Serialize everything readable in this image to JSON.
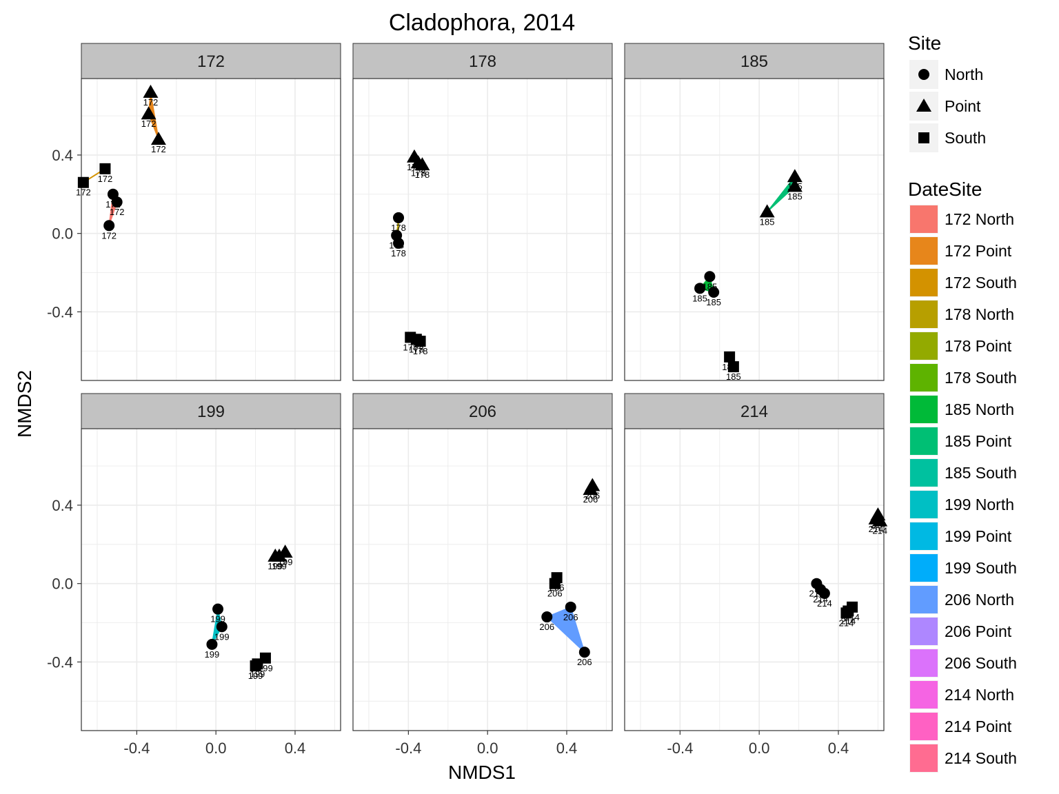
{
  "chart_data": {
    "type": "scatter",
    "title": "Cladophora, 2014",
    "xlabel": "NMDS1",
    "ylabel": "NMDS2",
    "xlim": [
      -0.68,
      0.63
    ],
    "ylim": [
      -0.75,
      0.79
    ],
    "x_ticks": [
      -0.4,
      0.0,
      0.4
    ],
    "y_ticks": [
      -0.4,
      0.0,
      0.4
    ],
    "x_tick_labels": [
      "-0.4",
      "0.0",
      "0.4"
    ],
    "y_tick_labels": [
      "-0.4",
      "0.0",
      "0.4"
    ],
    "grid": true,
    "legend_position": "right",
    "shape_legend": {
      "title": "Site",
      "entries": [
        {
          "label": "North",
          "shape": "circle"
        },
        {
          "label": "Point",
          "shape": "triangle"
        },
        {
          "label": "South",
          "shape": "square"
        }
      ]
    },
    "fill_legend": {
      "title": "DateSite",
      "entries": [
        {
          "label": "172 North",
          "color": "#F8766D"
        },
        {
          "label": "172 Point",
          "color": "#E7861B"
        },
        {
          "label": "172 South",
          "color": "#D39200"
        },
        {
          "label": "178 North",
          "color": "#B79F00"
        },
        {
          "label": "178 Point",
          "color": "#93AA00"
        },
        {
          "label": "178 South",
          "color": "#5EB300"
        },
        {
          "label": "185 North",
          "color": "#00BA38"
        },
        {
          "label": "185 Point",
          "color": "#00BF74"
        },
        {
          "label": "185 South",
          "color": "#00C19F"
        },
        {
          "label": "199 North",
          "color": "#00BFC4"
        },
        {
          "label": "199 Point",
          "color": "#00B9E3"
        },
        {
          "label": "199 South",
          "color": "#00ADFA"
        },
        {
          "label": "206 North",
          "color": "#619CFF"
        },
        {
          "label": "206 Point",
          "color": "#AE87FF"
        },
        {
          "label": "206 South",
          "color": "#DB72FB"
        },
        {
          "label": "214 North",
          "color": "#F564E3"
        },
        {
          "label": "214 Point",
          "color": "#FF61C3"
        },
        {
          "label": "214 South",
          "color": "#FF6C91"
        }
      ]
    },
    "panels": [
      {
        "label": "172",
        "groups": [
          {
            "name": "172 North",
            "site": "North",
            "points": [
              [
                -0.52,
                0.2
              ],
              [
                -0.5,
                0.16
              ],
              [
                -0.54,
                0.04
              ]
            ]
          },
          {
            "name": "172 Point",
            "site": "Point",
            "points": [
              [
                -0.33,
                0.72
              ],
              [
                -0.34,
                0.61
              ],
              [
                -0.29,
                0.48
              ]
            ]
          },
          {
            "name": "172 South",
            "site": "South",
            "points": [
              [
                -0.56,
                0.33
              ],
              [
                -0.67,
                0.26
              ]
            ]
          }
        ]
      },
      {
        "label": "178",
        "groups": [
          {
            "name": "178 North",
            "site": "North",
            "points": [
              [
                -0.45,
                0.08
              ],
              [
                -0.46,
                -0.01
              ],
              [
                -0.45,
                -0.05
              ]
            ]
          },
          {
            "name": "178 Point",
            "site": "Point",
            "points": [
              [
                -0.37,
                0.39
              ],
              [
                -0.35,
                0.36
              ],
              [
                -0.33,
                0.35
              ]
            ]
          },
          {
            "name": "178 South",
            "site": "South",
            "points": [
              [
                -0.39,
                -0.53
              ],
              [
                -0.36,
                -0.54
              ],
              [
                -0.34,
                -0.55
              ]
            ]
          }
        ]
      },
      {
        "label": "185",
        "groups": [
          {
            "name": "185 North",
            "site": "North",
            "points": [
              [
                -0.25,
                -0.22
              ],
              [
                -0.3,
                -0.28
              ],
              [
                -0.23,
                -0.3
              ]
            ]
          },
          {
            "name": "185 Point",
            "site": "Point",
            "points": [
              [
                0.18,
                0.29
              ],
              [
                0.04,
                0.11
              ],
              [
                0.18,
                0.24
              ]
            ]
          },
          {
            "name": "185 South",
            "site": "South",
            "points": [
              [
                -0.15,
                -0.63
              ],
              [
                -0.13,
                -0.68
              ]
            ]
          }
        ]
      },
      {
        "label": "199",
        "groups": [
          {
            "name": "199 North",
            "site": "North",
            "points": [
              [
                0.01,
                -0.13
              ],
              [
                0.03,
                -0.22
              ],
              [
                -0.02,
                -0.31
              ]
            ]
          },
          {
            "name": "199 Point",
            "site": "Point",
            "points": [
              [
                0.3,
                0.14
              ],
              [
                0.32,
                0.14
              ],
              [
                0.35,
                0.16
              ]
            ]
          },
          {
            "name": "199 South",
            "site": "South",
            "points": [
              [
                0.25,
                -0.38
              ],
              [
                0.21,
                -0.41
              ],
              [
                0.2,
                -0.42
              ]
            ]
          }
        ]
      },
      {
        "label": "206",
        "groups": [
          {
            "name": "206 North",
            "site": "North",
            "points": [
              [
                0.42,
                -0.12
              ],
              [
                0.3,
                -0.17
              ],
              [
                0.49,
                -0.35
              ]
            ]
          },
          {
            "name": "206 Point",
            "site": "Point",
            "points": [
              [
                0.53,
                0.5
              ],
              [
                0.52,
                0.48
              ]
            ]
          },
          {
            "name": "206 South",
            "site": "South",
            "points": [
              [
                0.35,
                0.03
              ],
              [
                0.34,
                0.0
              ]
            ]
          }
        ]
      },
      {
        "label": "214",
        "groups": [
          {
            "name": "214 North",
            "site": "North",
            "points": [
              [
                0.29,
                0.0
              ],
              [
                0.31,
                -0.03
              ],
              [
                0.33,
                -0.05
              ]
            ]
          },
          {
            "name": "214 Point",
            "site": "Point",
            "points": [
              [
                0.6,
                0.35
              ],
              [
                0.59,
                0.33
              ],
              [
                0.61,
                0.32
              ]
            ]
          },
          {
            "name": "214 South",
            "site": "South",
            "points": [
              [
                0.47,
                -0.12
              ],
              [
                0.45,
                -0.14
              ],
              [
                0.44,
                -0.15
              ]
            ]
          }
        ]
      }
    ]
  }
}
